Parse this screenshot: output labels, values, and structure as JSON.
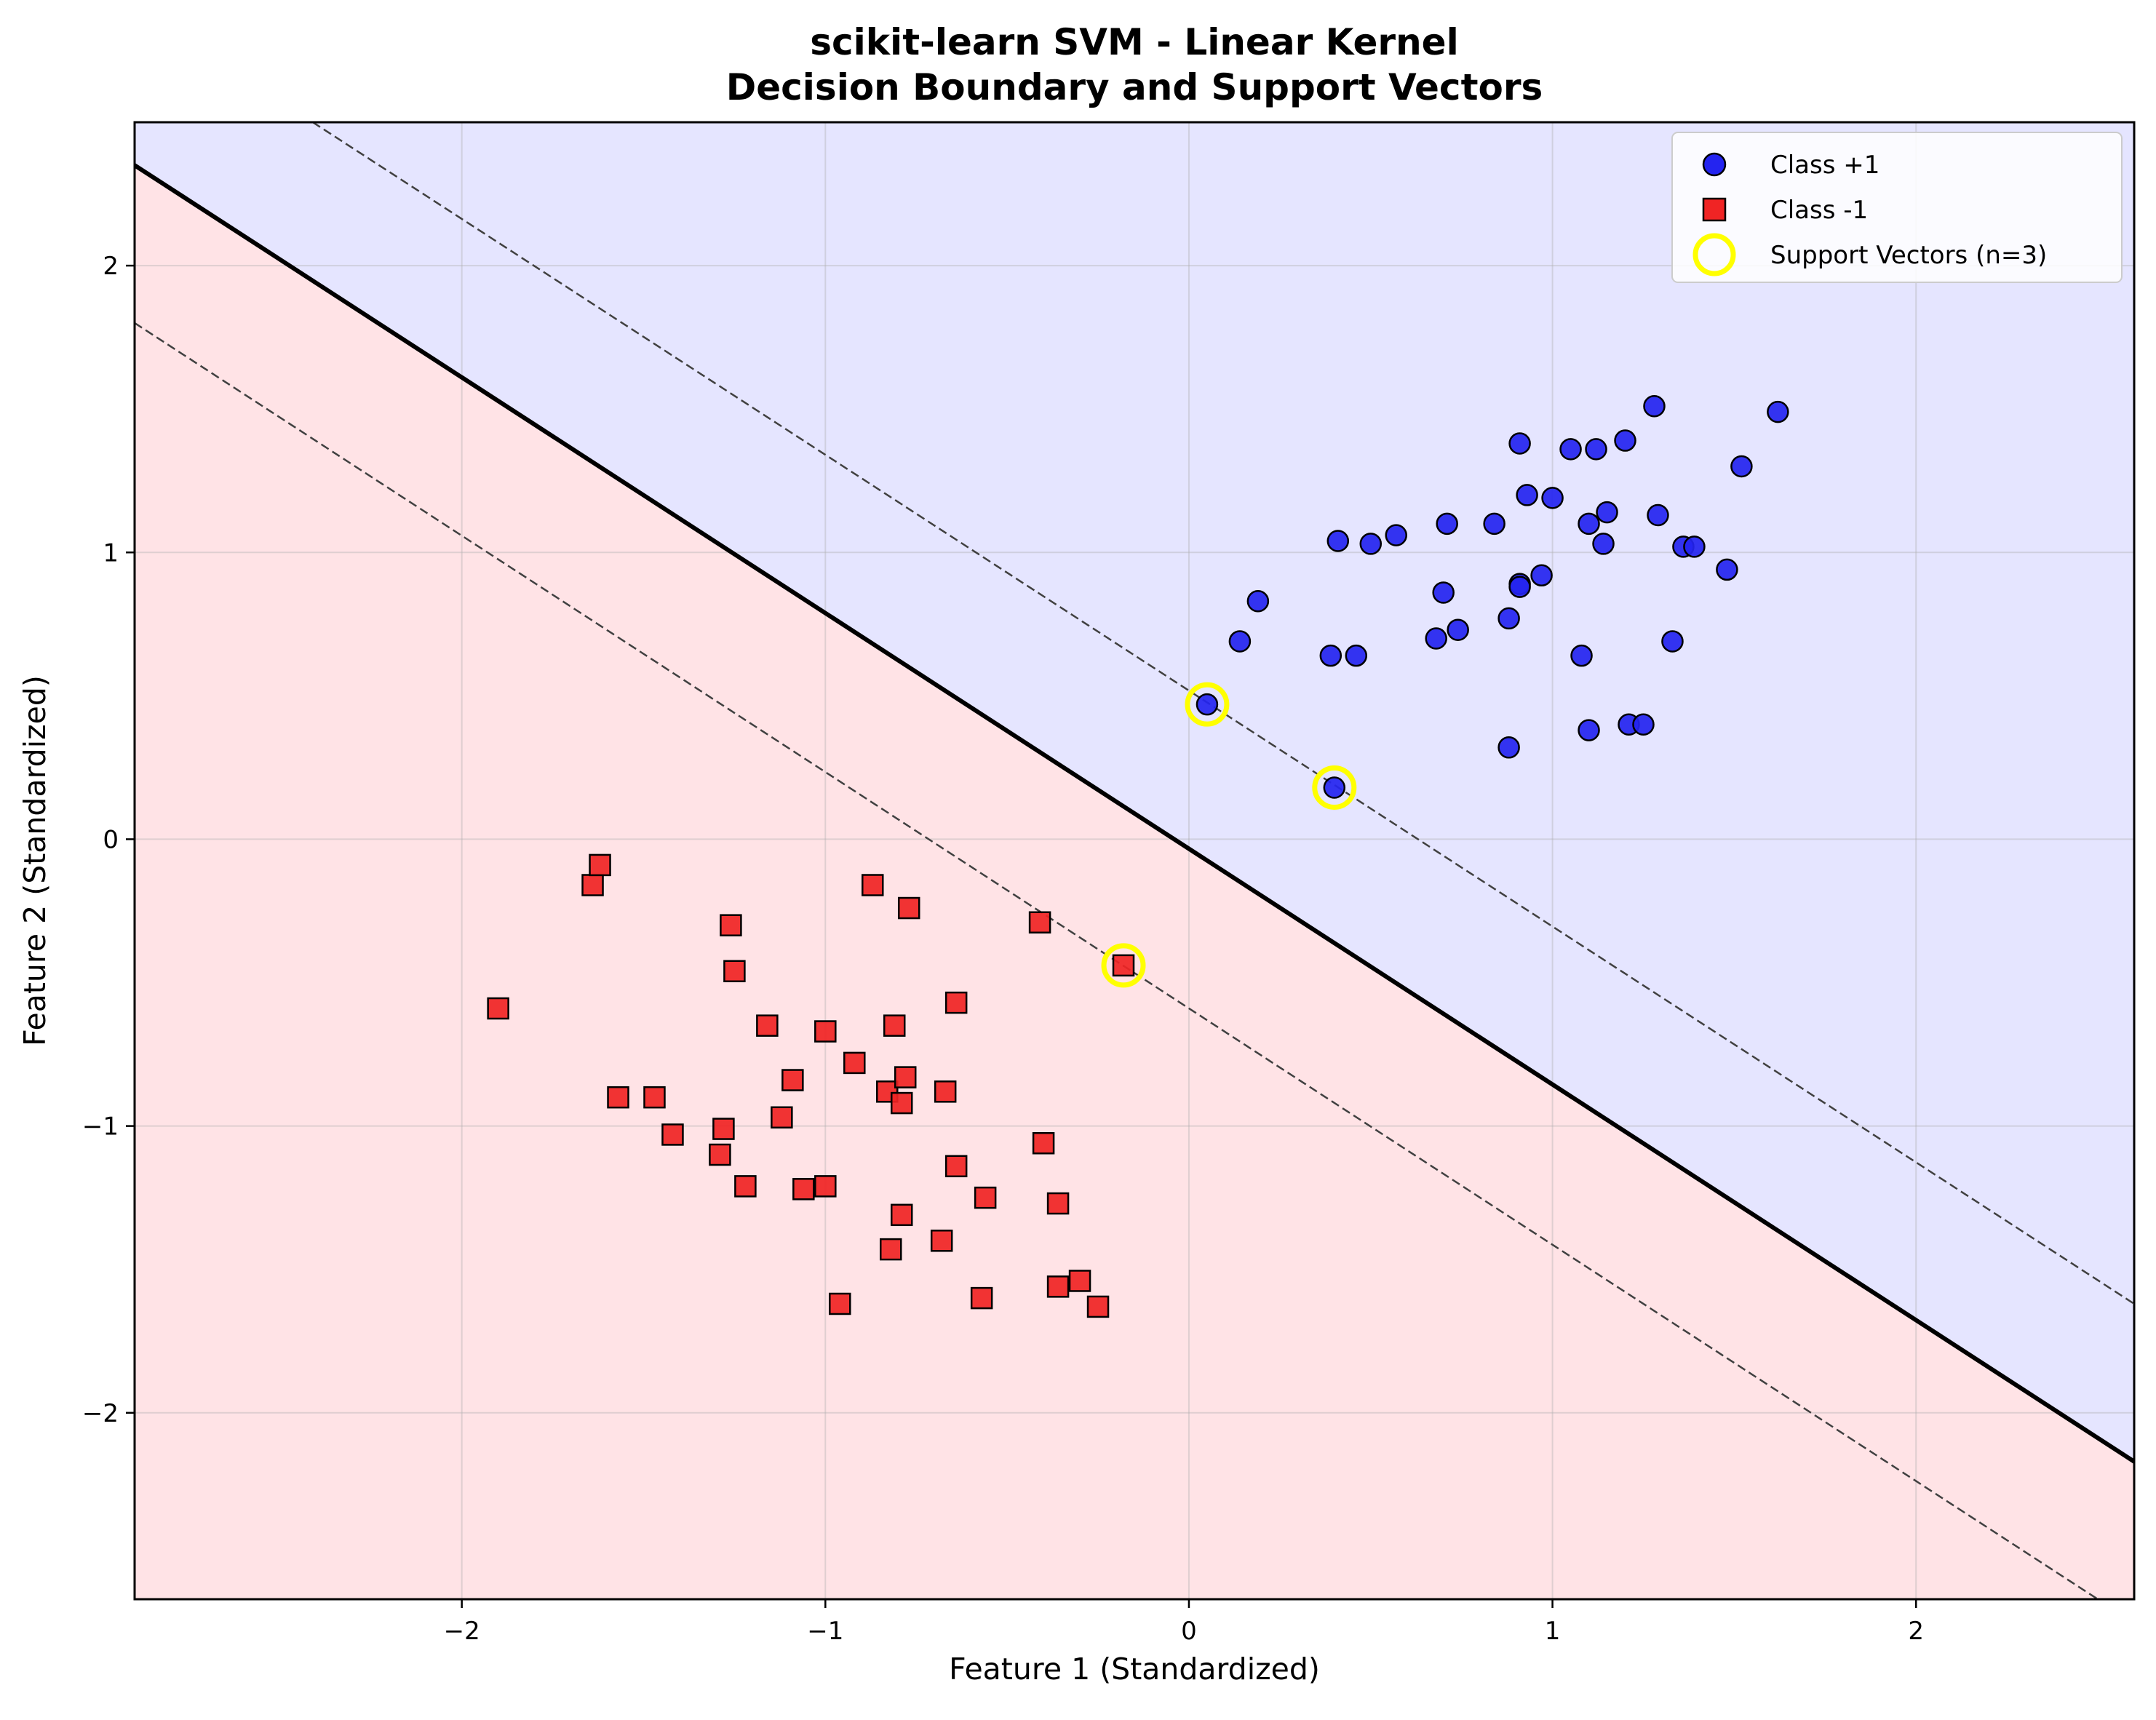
{
  "chart_data": {
    "type": "scatter",
    "title": "scikit-learn SVM - Linear Kernel",
    "subtitle": "Decision Boundary and Support Vectors",
    "xlabel": "Feature 1 (Standardized)",
    "ylabel": "Feature 2 (Standardized)",
    "xlim": [
      -2.9,
      2.6
    ],
    "ylim": [
      -2.65,
      2.5
    ],
    "xticks": [
      -2,
      -1,
      0,
      1,
      2
    ],
    "yticks": [
      -2,
      -1,
      0,
      1,
      2
    ],
    "grid": true,
    "legend_position": "top-right",
    "decision_boundary": {
      "line": [
        [
          -2.9,
          2.35
        ],
        [
          2.6,
          -2.17
        ]
      ],
      "margin_upper": [
        [
          -2.41,
          2.5
        ],
        [
          2.6,
          -1.62
        ]
      ],
      "margin_lower": [
        [
          -2.9,
          1.8
        ],
        [
          2.5,
          -2.65
        ]
      ],
      "region_positive_color": "#e5e5ff",
      "region_negative_color": "#ffe3e6",
      "line_color": "#000000",
      "margin_color": "#404040"
    },
    "series": [
      {
        "name": "Class +1",
        "marker": "circle",
        "color": "#2424f0",
        "points": [
          [
            0.05,
            0.47
          ],
          [
            0.4,
            0.18
          ],
          [
            0.14,
            0.69
          ],
          [
            0.19,
            0.83
          ],
          [
            0.39,
            0.64
          ],
          [
            0.46,
            0.64
          ],
          [
            0.41,
            1.04
          ],
          [
            0.5,
            1.03
          ],
          [
            0.57,
            1.06
          ],
          [
            0.68,
            0.7
          ],
          [
            0.7,
            0.86
          ],
          [
            0.71,
            1.1
          ],
          [
            0.74,
            0.73
          ],
          [
            0.84,
            1.1
          ],
          [
            0.88,
            0.77
          ],
          [
            0.88,
            0.32
          ],
          [
            0.91,
            0.89
          ],
          [
            0.91,
            0.88
          ],
          [
            0.91,
            1.38
          ],
          [
            0.93,
            1.2
          ],
          [
            0.97,
            0.92
          ],
          [
            1.0,
            1.19
          ],
          [
            1.05,
            1.36
          ],
          [
            1.08,
            0.64
          ],
          [
            1.1,
            1.1
          ],
          [
            1.1,
            0.38
          ],
          [
            1.12,
            1.36
          ],
          [
            1.14,
            1.03
          ],
          [
            1.15,
            1.14
          ],
          [
            1.2,
            1.39
          ],
          [
            1.21,
            0.4
          ],
          [
            1.25,
            0.4
          ],
          [
            1.28,
            1.51
          ],
          [
            1.29,
            1.13
          ],
          [
            1.33,
            0.69
          ],
          [
            1.36,
            1.02
          ],
          [
            1.39,
            1.02
          ],
          [
            1.48,
            0.94
          ],
          [
            1.52,
            1.3
          ],
          [
            1.62,
            1.49
          ]
        ]
      },
      {
        "name": "Class -1",
        "marker": "square",
        "color": "#f02424",
        "points": [
          [
            -1.9,
            -0.59
          ],
          [
            -1.64,
            -0.16
          ],
          [
            -1.62,
            -0.09
          ],
          [
            -1.57,
            -0.9
          ],
          [
            -1.47,
            -0.9
          ],
          [
            -1.42,
            -1.03
          ],
          [
            -1.26,
            -0.3
          ],
          [
            -1.25,
            -0.46
          ],
          [
            -1.28,
            -1.01
          ],
          [
            -1.29,
            -1.1
          ],
          [
            -1.22,
            -1.21
          ],
          [
            -1.16,
            -0.65
          ],
          [
            -1.12,
            -0.97
          ],
          [
            -1.09,
            -0.84
          ],
          [
            -1.06,
            -1.22
          ],
          [
            -1.0,
            -1.21
          ],
          [
            -1.0,
            -0.67
          ],
          [
            -0.96,
            -1.62
          ],
          [
            -0.92,
            -0.78
          ],
          [
            -0.87,
            -0.16
          ],
          [
            -0.83,
            -0.88
          ],
          [
            -0.82,
            -1.43
          ],
          [
            -0.81,
            -0.65
          ],
          [
            -0.79,
            -0.92
          ],
          [
            -0.78,
            -0.83
          ],
          [
            -0.79,
            -1.31
          ],
          [
            -0.77,
            -0.24
          ],
          [
            -0.67,
            -0.88
          ],
          [
            -0.68,
            -1.4
          ],
          [
            -0.64,
            -0.57
          ],
          [
            -0.64,
            -1.14
          ],
          [
            -0.56,
            -1.25
          ],
          [
            -0.57,
            -1.6
          ],
          [
            -0.41,
            -0.29
          ],
          [
            -0.4,
            -1.06
          ],
          [
            -0.36,
            -1.27
          ],
          [
            -0.36,
            -1.56
          ],
          [
            -0.3,
            -1.54
          ],
          [
            -0.25,
            -1.63
          ],
          [
            -0.18,
            -0.44
          ]
        ]
      },
      {
        "name": "Support Vectors (n=3)",
        "marker": "ring",
        "color": "#ffff00",
        "points": [
          [
            0.05,
            0.47
          ],
          [
            0.4,
            0.18
          ],
          [
            -0.18,
            -0.44
          ]
        ]
      }
    ]
  }
}
